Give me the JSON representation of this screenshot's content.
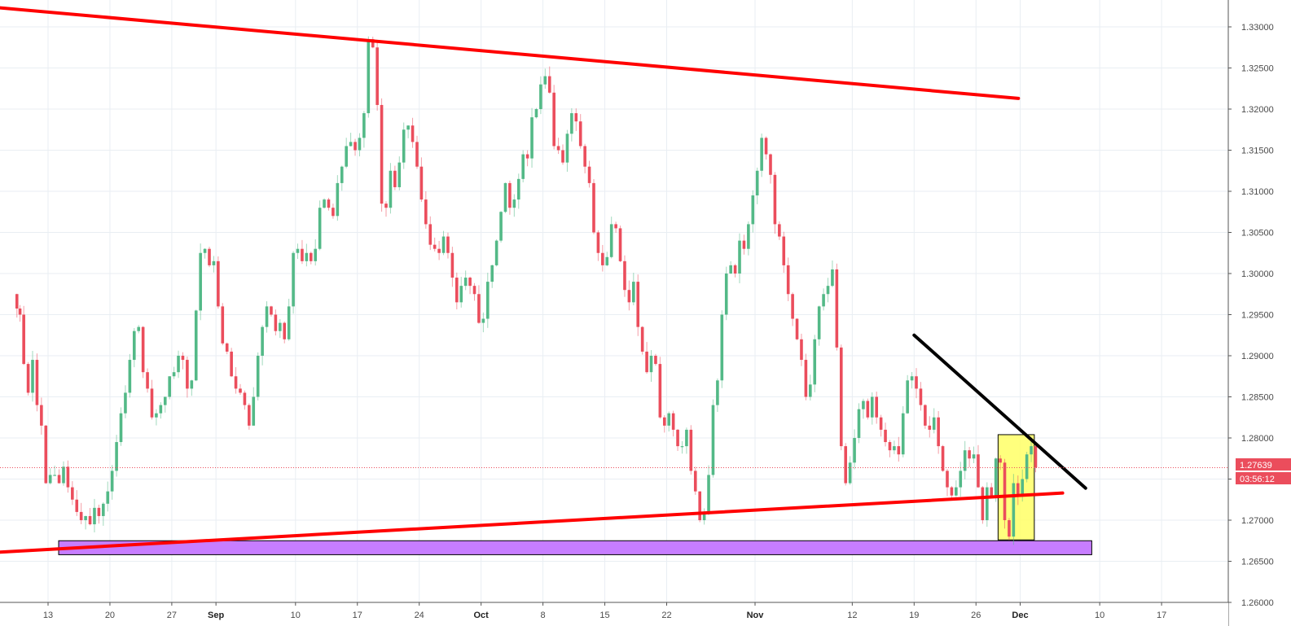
{
  "chart_data": {
    "type": "candlestick",
    "symbol_note": "",
    "colors": {
      "up": "#53b987",
      "down": "#eb4d5c",
      "grid": "#e9eef3",
      "axis_text": "#4a4a4a",
      "trendline_red": "#ff0000",
      "trendline_black": "#000000",
      "support_zone": "#c77dff",
      "highlight_zone": "#ffff66",
      "price_tag": "#eb4d5c"
    },
    "y_axis": {
      "min": 1.2595,
      "max": 1.3325,
      "ticks": [
        "1.33000",
        "1.32500",
        "1.32000",
        "1.31500",
        "1.31000",
        "1.30500",
        "1.30000",
        "1.29500",
        "1.29000",
        "1.28500",
        "1.28000",
        "1.27500",
        "1.27000",
        "1.26500",
        "1.26000"
      ]
    },
    "x_axis": {
      "ticks": [
        {
          "label": "13",
          "day": 0,
          "bold": false
        },
        {
          "label": "20",
          "day": 7,
          "bold": false
        },
        {
          "label": "27",
          "day": 14,
          "bold": false
        },
        {
          "label": "Sep",
          "day": 19,
          "bold": true
        },
        {
          "label": "10",
          "day": 28,
          "bold": false
        },
        {
          "label": "17",
          "day": 35,
          "bold": false
        },
        {
          "label": "24",
          "day": 42,
          "bold": false
        },
        {
          "label": "Oct",
          "day": 49,
          "bold": true
        },
        {
          "label": "8",
          "day": 56,
          "bold": false
        },
        {
          "label": "15",
          "day": 63,
          "bold": false
        },
        {
          "label": "22",
          "day": 70,
          "bold": false
        },
        {
          "label": "Nov",
          "day": 80,
          "bold": true
        },
        {
          "label": "12",
          "day": 91,
          "bold": false
        },
        {
          "label": "19",
          "day": 98,
          "bold": false
        },
        {
          "label": "26",
          "day": 105,
          "bold": false
        },
        {
          "label": "Dec",
          "day": 110,
          "bold": true
        },
        {
          "label": "10",
          "day": 119,
          "bold": false
        },
        {
          "label": "17",
          "day": 126,
          "bold": false
        }
      ]
    },
    "current_price": 1.27639,
    "current_price_label": "1.27639",
    "countdown_label": "03:56:12",
    "price_path": [
      [
        -3.7,
        1.2975
      ],
      [
        -3.0,
        1.295
      ],
      [
        -2.5,
        1.289
      ],
      [
        -2.0,
        1.2855
      ],
      [
        -1.5,
        1.2895
      ],
      [
        -1.0,
        1.284
      ],
      [
        -0.5,
        1.2815
      ],
      [
        0.0,
        1.2745
      ],
      [
        0.5,
        1.2755
      ],
      [
        1.0,
        1.2755
      ],
      [
        1.5,
        1.2745
      ],
      [
        2.0,
        1.2765
      ],
      [
        2.5,
        1.274
      ],
      [
        3.0,
        1.2725
      ],
      [
        3.5,
        1.271
      ],
      [
        4.0,
        1.27
      ],
      [
        4.5,
        1.2705
      ],
      [
        5.0,
        1.2695
      ],
      [
        5.5,
        1.2715
      ],
      [
        6.0,
        1.2705
      ],
      [
        6.5,
        1.272
      ],
      [
        7.0,
        1.2735
      ],
      [
        7.5,
        1.276
      ],
      [
        8.0,
        1.2795
      ],
      [
        8.5,
        1.283
      ],
      [
        9.0,
        1.2855
      ],
      [
        9.5,
        1.2895
      ],
      [
        10.0,
        1.293
      ],
      [
        10.5,
        1.2935
      ],
      [
        11.0,
        1.288
      ],
      [
        11.5,
        1.286
      ],
      [
        12.0,
        1.2825
      ],
      [
        12.5,
        1.283
      ],
      [
        13.0,
        1.284
      ],
      [
        13.5,
        1.285
      ],
      [
        14.0,
        1.2875
      ],
      [
        14.5,
        1.288
      ],
      [
        15.0,
        1.29
      ],
      [
        15.5,
        1.2895
      ],
      [
        16.0,
        1.286
      ],
      [
        16.5,
        1.287
      ],
      [
        17.0,
        1.2955
      ],
      [
        17.5,
        1.3025
      ],
      [
        18.0,
        1.303
      ],
      [
        18.5,
        1.301
      ],
      [
        19.0,
        1.3015
      ],
      [
        19.5,
        1.296
      ],
      [
        20.0,
        1.2915
      ],
      [
        20.5,
        1.2905
      ],
      [
        21.0,
        1.2875
      ],
      [
        21.5,
        1.286
      ],
      [
        22.0,
        1.2855
      ],
      [
        22.5,
        1.284
      ],
      [
        23.0,
        1.2815
      ],
      [
        23.5,
        1.285
      ],
      [
        24.0,
        1.29
      ],
      [
        24.5,
        1.2935
      ],
      [
        25.0,
        1.296
      ],
      [
        25.5,
        1.295
      ],
      [
        26.0,
        1.293
      ],
      [
        26.5,
        1.294
      ],
      [
        27.0,
        1.292
      ],
      [
        27.5,
        1.296
      ],
      [
        28.0,
        1.3025
      ],
      [
        28.5,
        1.303
      ],
      [
        29.0,
        1.3015
      ],
      [
        29.5,
        1.3025
      ],
      [
        30.0,
        1.3015
      ],
      [
        30.5,
        1.303
      ],
      [
        31.0,
        1.308
      ],
      [
        31.5,
        1.309
      ],
      [
        32.0,
        1.308
      ],
      [
        32.5,
        1.307
      ],
      [
        33.0,
        1.311
      ],
      [
        33.5,
        1.313
      ],
      [
        34.0,
        1.3155
      ],
      [
        34.5,
        1.316
      ],
      [
        35.0,
        1.315
      ],
      [
        35.5,
        1.3165
      ],
      [
        36.0,
        1.3195
      ],
      [
        36.5,
        1.3285
      ],
      [
        37.0,
        1.3275
      ],
      [
        37.5,
        1.3205
      ],
      [
        38.0,
        1.3085
      ],
      [
        38.5,
        1.308
      ],
      [
        39.0,
        1.3125
      ],
      [
        39.5,
        1.3105
      ],
      [
        40.0,
        1.3135
      ],
      [
        40.5,
        1.3175
      ],
      [
        41.0,
        1.318
      ],
      [
        41.5,
        1.316
      ],
      [
        42.0,
        1.313
      ],
      [
        42.5,
        1.309
      ],
      [
        43.0,
        1.306
      ],
      [
        43.5,
        1.3035
      ],
      [
        44.0,
        1.303
      ],
      [
        44.5,
        1.3025
      ],
      [
        45.0,
        1.3045
      ],
      [
        45.5,
        1.3025
      ],
      [
        46.0,
        1.2995
      ],
      [
        46.5,
        1.2965
      ],
      [
        47.0,
        1.2985
      ],
      [
        47.5,
        1.2995
      ],
      [
        48.0,
        1.2985
      ],
      [
        48.5,
        1.2975
      ],
      [
        49.0,
        1.294
      ],
      [
        49.5,
        1.2945
      ],
      [
        50.0,
        1.299
      ],
      [
        50.5,
        1.301
      ],
      [
        51.0,
        1.304
      ],
      [
        51.5,
        1.3075
      ],
      [
        52.0,
        1.311
      ],
      [
        52.5,
        1.308
      ],
      [
        53.0,
        1.309
      ],
      [
        53.5,
        1.3115
      ],
      [
        54.0,
        1.3145
      ],
      [
        54.5,
        1.314
      ],
      [
        55.0,
        1.319
      ],
      [
        55.5,
        1.32
      ],
      [
        56.0,
        1.323
      ],
      [
        56.5,
        1.324
      ],
      [
        57.0,
        1.322
      ],
      [
        57.5,
        1.3155
      ],
      [
        58.0,
        1.315
      ],
      [
        58.5,
        1.3135
      ],
      [
        59.0,
        1.317
      ],
      [
        59.5,
        1.3195
      ],
      [
        60.0,
        1.3185
      ],
      [
        60.5,
        1.3155
      ],
      [
        61.0,
        1.313
      ],
      [
        61.5,
        1.311
      ],
      [
        62.0,
        1.305
      ],
      [
        62.5,
        1.3025
      ],
      [
        63.0,
        1.301
      ],
      [
        63.5,
        1.302
      ],
      [
        64.0,
        1.306
      ],
      [
        64.5,
        1.3055
      ],
      [
        65.0,
        1.3015
      ],
      [
        65.5,
        1.298
      ],
      [
        66.0,
        1.2965
      ],
      [
        66.5,
        1.299
      ],
      [
        67.0,
        1.2935
      ],
      [
        67.5,
        1.2905
      ],
      [
        68.0,
        1.288
      ],
      [
        68.5,
        1.29
      ],
      [
        69.0,
        1.289
      ],
      [
        69.5,
        1.2825
      ],
      [
        70.0,
        1.2815
      ],
      [
        70.5,
        1.283
      ],
      [
        71.0,
        1.281
      ],
      [
        71.5,
        1.279
      ],
      [
        72.0,
        1.279
      ],
      [
        72.5,
        1.281
      ],
      [
        73.0,
        1.276
      ],
      [
        73.5,
        1.2735
      ],
      [
        74.0,
        1.27
      ],
      [
        74.5,
        1.271
      ],
      [
        75.0,
        1.2755
      ],
      [
        75.5,
        1.284
      ],
      [
        76.0,
        1.287
      ],
      [
        76.5,
        1.295
      ],
      [
        77.0,
        1.3
      ],
      [
        77.5,
        1.301
      ],
      [
        78.0,
        1.3
      ],
      [
        78.5,
        1.304
      ],
      [
        79.0,
        1.303
      ],
      [
        79.5,
        1.306
      ],
      [
        80.0,
        1.3095
      ],
      [
        80.5,
        1.3125
      ],
      [
        81.0,
        1.3165
      ],
      [
        81.5,
        1.3145
      ],
      [
        82.0,
        1.312
      ],
      [
        82.5,
        1.306
      ],
      [
        83.0,
        1.3045
      ],
      [
        83.5,
        1.301
      ],
      [
        84.0,
        1.2975
      ],
      [
        84.5,
        1.2945
      ],
      [
        85.0,
        1.292
      ],
      [
        85.5,
        1.2895
      ],
      [
        86.0,
        1.285
      ],
      [
        86.5,
        1.2865
      ],
      [
        87.0,
        1.292
      ],
      [
        87.5,
        1.296
      ],
      [
        88.0,
        1.2975
      ],
      [
        88.5,
        1.2985
      ],
      [
        89.0,
        1.3005
      ],
      [
        89.5,
        1.291
      ],
      [
        90.0,
        1.279
      ],
      [
        90.5,
        1.2745
      ],
      [
        91.0,
        1.277
      ],
      [
        91.5,
        1.28
      ],
      [
        92.0,
        1.2835
      ],
      [
        92.5,
        1.2845
      ],
      [
        93.0,
        1.2825
      ],
      [
        93.5,
        1.285
      ],
      [
        94.0,
        1.2825
      ],
      [
        94.5,
        1.281
      ],
      [
        95.0,
        1.2795
      ],
      [
        95.5,
        1.2785
      ],
      [
        96.0,
        1.279
      ],
      [
        96.5,
        1.278
      ],
      [
        97.0,
        1.283
      ],
      [
        97.5,
        1.287
      ],
      [
        98.0,
        1.2875
      ],
      [
        98.5,
        1.286
      ],
      [
        99.0,
        1.284
      ],
      [
        99.5,
        1.2815
      ],
      [
        100.0,
        1.281
      ],
      [
        100.5,
        1.2825
      ],
      [
        101.0,
        1.279
      ],
      [
        101.5,
        1.276
      ],
      [
        102.0,
        1.274
      ],
      [
        102.5,
        1.273
      ],
      [
        103.0,
        1.274
      ],
      [
        103.5,
        1.276
      ],
      [
        104.0,
        1.2785
      ],
      [
        104.5,
        1.2775
      ],
      [
        105.0,
        1.278
      ],
      [
        105.5,
        1.274
      ],
      [
        106.0,
        1.27
      ],
      [
        106.5,
        1.274
      ],
      [
        107.0,
        1.273
      ],
      [
        107.5,
        1.2775
      ],
      [
        108.0,
        1.277
      ],
      [
        108.5,
        1.27
      ],
      [
        109.0,
        1.268
      ],
      [
        109.5,
        1.2745
      ],
      [
        110.0,
        1.273
      ],
      [
        110.5,
        1.275
      ],
      [
        111.0,
        1.278
      ],
      [
        111.5,
        1.279
      ],
      [
        112.0,
        1.2764
      ]
    ],
    "annotations": [
      {
        "kind": "trendline",
        "color": "red",
        "from": [
          -7.4,
          1.3325
        ],
        "to": [
          109.8,
          1.3213
        ]
      },
      {
        "kind": "trendline",
        "color": "red",
        "from": [
          -7.4,
          1.266
        ],
        "to": [
          114.8,
          1.2733
        ]
      },
      {
        "kind": "trendline",
        "color": "black",
        "from": [
          98.0,
          1.2925
        ],
        "to": [
          117.4,
          1.2739
        ]
      },
      {
        "kind": "zone",
        "color": "purple",
        "from": [
          1.2,
          1.2675
        ],
        "to": [
          118.1,
          1.2658
        ]
      },
      {
        "kind": "zone",
        "color": "yellow",
        "from": [
          107.5,
          1.2804
        ],
        "to": [
          111.6,
          1.2676
        ]
      }
    ]
  }
}
